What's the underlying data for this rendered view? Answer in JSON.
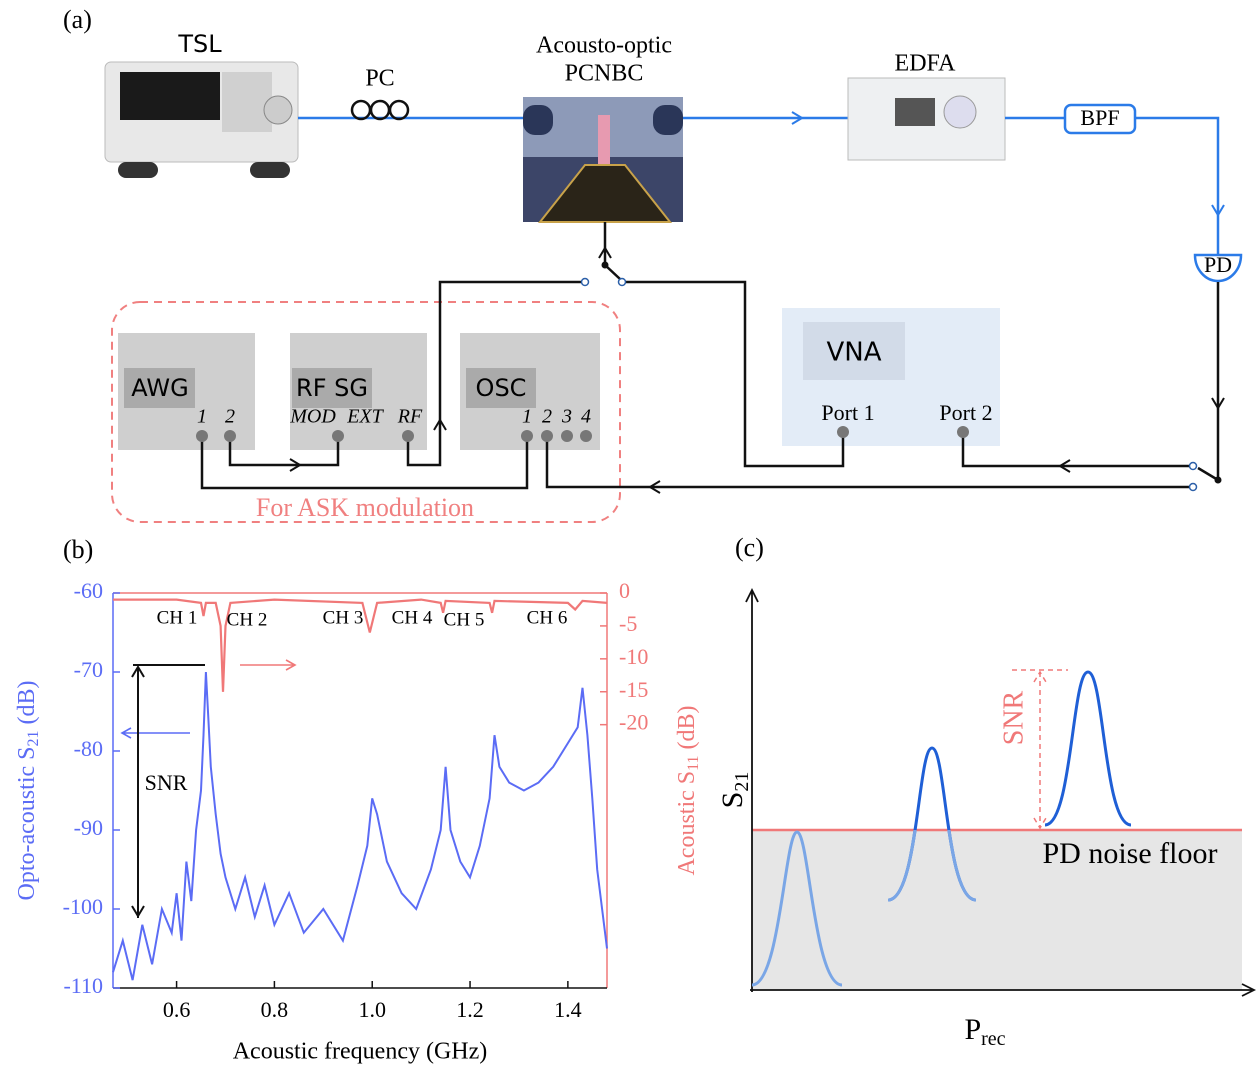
{
  "diagram": {
    "label": "(a)",
    "tsl": "TSL",
    "pc": "PC",
    "pcnbc": [
      "Acousto-optic",
      "PCNBC"
    ],
    "edfa": "EDFA",
    "bpf": "BPF",
    "pd": "PD",
    "awg": {
      "title": "AWG",
      "ports": [
        "1",
        "2"
      ]
    },
    "rfsg": {
      "title": "RF SG",
      "ports": [
        "MOD",
        "EXT",
        "RF"
      ]
    },
    "osc": {
      "title": "OSC",
      "ports": [
        "1",
        "2",
        "3",
        "4"
      ]
    },
    "vna": {
      "title": "VNA",
      "ports": [
        "Port 1",
        "Port 2"
      ]
    },
    "group_label": "For ASK modulation"
  },
  "chart_data": {
    "type": "line",
    "panel_label": "(b)",
    "x_label": "Acoustic frequency (GHz)",
    "y_label": {
      "main": "Opto-acoustic S",
      "sub": "21",
      "after": " (dB)"
    },
    "y2_label": {
      "main": "Acoustic S",
      "sub": "11",
      "after": " (dB)"
    },
    "xlim": [
      0.47,
      1.48
    ],
    "xticks": [
      0.6,
      0.8,
      {
        "value": 1,
        "label": "1.0"
      },
      1.2,
      1.4
    ],
    "ylim": [
      -110,
      -60
    ],
    "yticks": [
      -110,
      -100,
      -90,
      -80,
      -70,
      -60
    ],
    "y2lim": [
      -60,
      0
    ],
    "y2ticks": [
      0,
      -5,
      -10,
      -15,
      -20
    ],
    "series": [
      {
        "color": "#5b6cf5",
        "x": [
          0.47,
          0.49,
          0.51,
          0.53,
          0.55,
          0.57,
          0.59,
          0.6,
          0.61,
          0.62,
          0.63,
          0.64,
          0.65,
          0.655,
          0.66,
          0.665,
          0.67,
          0.68,
          0.69,
          0.7,
          0.72,
          0.74,
          0.76,
          0.78,
          0.8,
          0.83,
          0.86,
          0.9,
          0.94,
          0.97,
          0.99,
          1.0,
          1.01,
          1.03,
          1.06,
          1.09,
          1.12,
          1.14,
          1.15,
          1.16,
          1.18,
          1.2,
          1.22,
          1.24,
          1.25,
          1.26,
          1.28,
          1.31,
          1.34,
          1.37,
          1.4,
          1.42,
          1.43,
          1.44,
          1.45,
          1.46,
          1.47,
          1.48
        ],
        "values": [
          -108,
          -104,
          -109,
          -102,
          -107,
          -100,
          -103,
          -98,
          -104,
          -94,
          -99,
          -90,
          -85,
          -78,
          -70,
          -76,
          -82,
          -88,
          -93,
          -96,
          -100,
          -96,
          -101,
          -97,
          -102,
          -98,
          -103,
          -100,
          -104,
          -97,
          -92,
          -86,
          -88,
          -94,
          -98,
          -100,
          -95,
          -90,
          -82,
          -90,
          -94,
          -96,
          -92,
          -86,
          -78,
          -82,
          -84,
          -85,
          -84,
          -82,
          -79,
          -77,
          -72,
          -78,
          -86,
          -95,
          -100,
          -105
        ]
      },
      {
        "color": "#f07878",
        "axis": "y2",
        "x": [
          0.47,
          0.6,
          0.65,
          0.655,
          0.66,
          0.68,
          0.69,
          0.695,
          0.7,
          0.71,
          0.8,
          0.98,
          0.995,
          1.01,
          1.1,
          1.14,
          1.145,
          1.15,
          1.24,
          1.245,
          1.25,
          1.4,
          1.415,
          1.43,
          1.48
        ],
        "values": [
          -1,
          -1,
          -1.5,
          -3.5,
          -1.5,
          -1.5,
          -5,
          -15,
          -5,
          -1.5,
          -1,
          -1.5,
          -6,
          -1.5,
          -1,
          -1.5,
          -3,
          -1.2,
          -1.5,
          -3,
          -1.2,
          -1.5,
          -2.5,
          -1.2,
          -1.5
        ]
      }
    ],
    "channels": [
      "CH 1",
      "CH 2",
      "CH 3",
      "CH 4",
      "CH 5",
      "CH 6"
    ],
    "snr": "SNR"
  },
  "schematic": {
    "label": "(c)",
    "y_label": {
      "main": "S",
      "sub": "21"
    },
    "x_label": {
      "main": "P",
      "sub": "rec"
    },
    "snr": "SNR",
    "noise_floor": "PD noise floor"
  }
}
